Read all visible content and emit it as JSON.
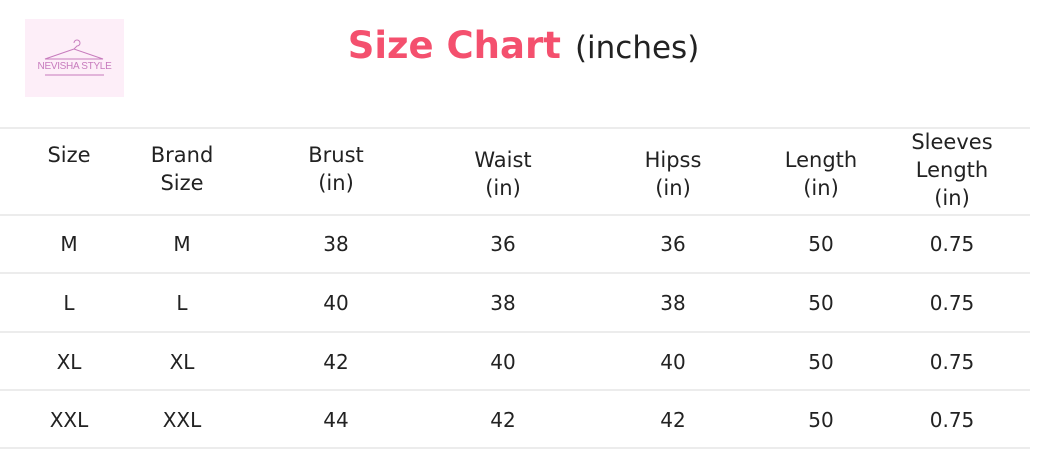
{
  "logo": {
    "text": "NEVISHA STYLE",
    "icon": "hanger-icon",
    "background": "#fdeef8"
  },
  "title": {
    "main": "Size Chart",
    "sub": "(inches)",
    "color": "#f4506e"
  },
  "table": {
    "headers": [
      "Size",
      "Brand\nSize",
      "Brust\n(in)",
      "Waist\n(in)",
      "Hipss\n(in)",
      "Length\n(in)",
      "Sleeves\nLength\n(in)"
    ],
    "rows": [
      [
        "M",
        "M",
        "38",
        "36",
        "36",
        "50",
        "0.75"
      ],
      [
        "L",
        "L",
        "40",
        "38",
        "38",
        "50",
        "0.75"
      ],
      [
        "XL",
        "XL",
        "42",
        "40",
        "40",
        "50",
        "0.75"
      ],
      [
        "XXL",
        "XXL",
        "44",
        "42",
        "42",
        "50",
        "0.75"
      ]
    ]
  }
}
